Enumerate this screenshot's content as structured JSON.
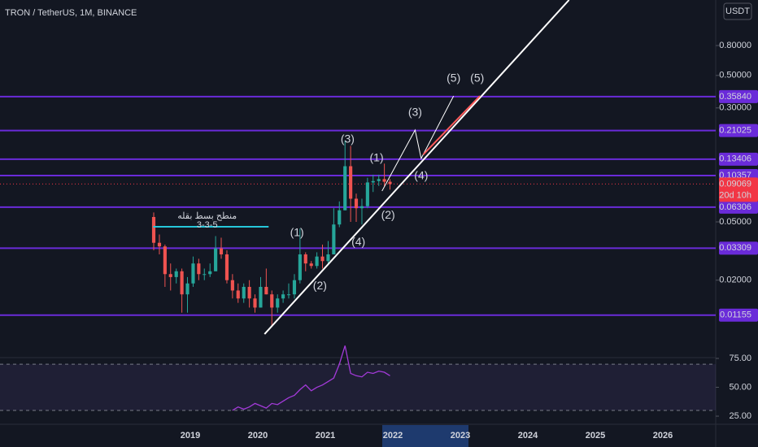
{
  "header": {
    "symbol": "TRON / TetherUS, 1M, BINANCE",
    "currency": "USDT"
  },
  "chart_data": [
    {
      "type": "candlestick",
      "x": [
        2018.458,
        2018.542,
        2018.625,
        2018.708,
        2018.792,
        2018.875,
        2018.958,
        2019.042,
        2019.125,
        2019.208,
        2019.292,
        2019.375,
        2019.458,
        2019.542,
        2019.625,
        2019.708,
        2019.792,
        2019.875,
        2019.958,
        2020.042,
        2020.125,
        2020.208,
        2020.292,
        2020.375,
        2020.458,
        2020.542,
        2020.625,
        2020.708,
        2020.792,
        2020.875,
        2020.958,
        2021.042,
        2021.125,
        2021.208,
        2021.292,
        2021.375,
        2021.458,
        2021.542,
        2021.625,
        2021.708,
        2021.792,
        2021.875,
        2021.958
      ],
      "open": [
        0.054,
        0.036,
        0.034,
        0.022,
        0.021,
        0.023,
        0.016,
        0.019,
        0.026,
        0.022,
        0.022,
        0.023,
        0.033,
        0.03,
        0.02,
        0.017,
        0.015,
        0.018,
        0.015,
        0.013,
        0.018,
        0.016,
        0.013,
        0.015,
        0.016,
        0.016,
        0.02,
        0.03,
        0.026,
        0.025,
        0.029,
        0.027,
        0.03,
        0.048,
        0.06,
        0.12,
        0.072,
        0.062,
        0.064,
        0.093,
        0.095,
        0.098,
        0.094
      ],
      "high": [
        0.058,
        0.041,
        0.035,
        0.026,
        0.024,
        0.024,
        0.021,
        0.029,
        0.028,
        0.024,
        0.026,
        0.04,
        0.039,
        0.032,
        0.022,
        0.019,
        0.019,
        0.02,
        0.016,
        0.021,
        0.024,
        0.017,
        0.016,
        0.017,
        0.019,
        0.022,
        0.045,
        0.031,
        0.027,
        0.031,
        0.035,
        0.037,
        0.062,
        0.069,
        0.18,
        0.165,
        0.078,
        0.072,
        0.1,
        0.105,
        0.105,
        0.125,
        0.098
      ],
      "low": [
        0.032,
        0.03,
        0.018,
        0.017,
        0.019,
        0.012,
        0.012,
        0.018,
        0.02,
        0.02,
        0.021,
        0.023,
        0.028,
        0.019,
        0.015,
        0.014,
        0.014,
        0.013,
        0.012,
        0.013,
        0.016,
        0.0098,
        0.012,
        0.014,
        0.015,
        0.015,
        0.019,
        0.023,
        0.024,
        0.024,
        0.024,
        0.026,
        0.03,
        0.046,
        0.06,
        0.05,
        0.05,
        0.048,
        0.062,
        0.08,
        0.088,
        0.088,
        0.083
      ],
      "close": [
        0.036,
        0.034,
        0.022,
        0.021,
        0.023,
        0.016,
        0.019,
        0.026,
        0.022,
        0.022,
        0.023,
        0.033,
        0.03,
        0.02,
        0.017,
        0.015,
        0.018,
        0.015,
        0.013,
        0.018,
        0.016,
        0.013,
        0.015,
        0.016,
        0.016,
        0.02,
        0.03,
        0.026,
        0.025,
        0.029,
        0.027,
        0.03,
        0.048,
        0.06,
        0.12,
        0.072,
        0.062,
        0.064,
        0.093,
        0.095,
        0.098,
        0.094,
        0.09069
      ],
      "up_color": "#26a69a",
      "down_color": "#ef5350",
      "xlim": [
        2016.181,
        2026.783
      ],
      "xticks": [
        2019,
        2020,
        2021,
        2022,
        2023,
        2024,
        2025,
        2026
      ],
      "ylim": [
        0.00592,
        1.637
      ],
      "log_scale": true,
      "yticks": [
        {
          "value": 0.8,
          "label": "0.80000"
        },
        {
          "value": 0.5,
          "label": "0.50000"
        },
        {
          "value": 0.3,
          "label": "0.30000"
        },
        {
          "value": 0.05,
          "label": "0.05000"
        },
        {
          "value": 0.02,
          "label": "0.02000"
        }
      ],
      "level_color": "#6a2bd9",
      "levels": [
        {
          "value": 0.3584,
          "label": "0.35840"
        },
        {
          "value": 0.21025,
          "label": "0.21025"
        },
        {
          "value": 0.13406,
          "label": "0.13406"
        },
        {
          "value": 0.10357,
          "label": "0.10357"
        },
        {
          "value": 0.06306,
          "label": "0.06306"
        },
        {
          "value": 0.03309,
          "label": "0.03309"
        },
        {
          "value": 0.01155,
          "label": "0.01155"
        }
      ],
      "last_price": {
        "value": 0.09069,
        "countdown": "20d 10h",
        "color": "#f23645"
      },
      "lines": [
        {
          "color": "#ffffff",
          "width": 2,
          "x": [
            2020.1,
            2024.61
          ],
          "y": [
            0.00857,
            1.637
          ]
        },
        {
          "color": "#ffffff",
          "width": 1,
          "x": [
            2021.84,
            2022.33,
            2022.42,
            2022.9
          ],
          "y": [
            0.0813,
            0.212,
            0.1355,
            0.362
          ]
        },
        {
          "color": "#ff5a5a",
          "width": 2,
          "x": [
            2022.45,
            2023.29
          ],
          "y": [
            0.144,
            0.362
          ]
        },
        {
          "color": "#26c6da",
          "width": 2,
          "x": [
            2018.45,
            2020.16
          ],
          "y": [
            0.0463,
            0.0463
          ]
        }
      ],
      "annotations": [
        {
          "text": "(1)",
          "x": 2020.58,
          "y": 0.0418,
          "color": "#ef5350"
        },
        {
          "text": "(2)",
          "x": 2020.92,
          "y": 0.0182,
          "color": "#ef5350"
        },
        {
          "text": "(3)",
          "x": 2021.33,
          "y": 0.182,
          "color": "#ef5350"
        },
        {
          "text": "(4)",
          "x": 2021.49,
          "y": 0.0363,
          "color": "#ef5350"
        },
        {
          "text": "(5)",
          "x": 2023.25,
          "y": 0.474,
          "color": "#ef5350"
        },
        {
          "text": "(1)",
          "x": 2021.76,
          "y": 0.1355,
          "color": "#ffffff"
        },
        {
          "text": "(2)",
          "x": 2021.93,
          "y": 0.0553,
          "color": "#ffffff"
        },
        {
          "text": "(3)",
          "x": 2022.33,
          "y": 0.277,
          "color": "#ffffff"
        },
        {
          "text": "(4)",
          "x": 2022.42,
          "y": 0.1023,
          "color": "#ffffff"
        },
        {
          "text": "(5)",
          "x": 2022.9,
          "y": 0.474,
          "color": "#ffffff"
        },
        {
          "text": "منطح بسط بقله",
          "x": 2019.25,
          "y": 0.0545,
          "color": "#4f8fd6"
        },
        {
          "text": "3-3-5",
          "x": 2019.25,
          "y": 0.0475,
          "color": "#4f8fd6"
        }
      ]
    },
    {
      "type": "line",
      "color": "#a33ad9",
      "x": [
        2019.625,
        2019.708,
        2019.792,
        2019.875,
        2019.958,
        2020.042,
        2020.125,
        2020.208,
        2020.292,
        2020.375,
        2020.458,
        2020.542,
        2020.625,
        2020.708,
        2020.792,
        2020.875,
        2020.958,
        2021.042,
        2021.125,
        2021.208,
        2021.292,
        2021.375,
        2021.458,
        2021.542,
        2021.625,
        2021.708,
        2021.792,
        2021.875,
        2021.958
      ],
      "values": [
        30,
        33,
        31,
        33,
        36,
        34,
        32,
        36,
        35,
        38,
        41,
        43,
        48,
        52,
        47,
        50,
        52,
        55,
        58,
        70,
        86,
        62,
        60,
        59,
        63,
        62,
        64,
        63,
        60
      ],
      "xlim": [
        2016.181,
        2026.783
      ],
      "ylim": [
        19.4,
        75.7
      ],
      "yticks": [
        {
          "value": 75,
          "label": "75.00"
        },
        {
          "value": 50,
          "label": "50.00"
        },
        {
          "value": 25,
          "label": "25.00"
        }
      ],
      "band": [
        30,
        70
      ],
      "band_color": "#7e57c2"
    }
  ]
}
